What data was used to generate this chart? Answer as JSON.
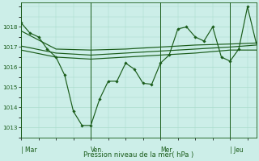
{
  "background_color": "#cceee8",
  "grid_color": "#aaddcc",
  "line_color": "#1a5c1a",
  "text_color": "#1a5c1a",
  "xlabel": "Pression niveau de la mer( hPa )",
  "ylim": [
    1012.5,
    1019.2
  ],
  "yticks": [
    1013,
    1014,
    1015,
    1016,
    1017,
    1018
  ],
  "day_labels": [
    "| Mar",
    "Ven",
    "Mer",
    "| Jeu"
  ],
  "series1_x": [
    0,
    1,
    2,
    3,
    4,
    5,
    6,
    7,
    8,
    9,
    10,
    11,
    12,
    13,
    14,
    15,
    16,
    17,
    18,
    19,
    20,
    21,
    22,
    23,
    24,
    25,
    26,
    27
  ],
  "series1_y": [
    1018.2,
    1017.7,
    1017.5,
    1016.9,
    1016.5,
    1015.6,
    1013.8,
    1013.1,
    1013.1,
    1014.4,
    1015.3,
    1015.3,
    1016.2,
    1015.9,
    1015.2,
    1015.15,
    1016.2,
    1016.6,
    1017.9,
    1018.0,
    1017.5,
    1017.3,
    1018.0,
    1016.5,
    1016.3,
    1016.9,
    1019.0,
    1017.2
  ],
  "series2_x": [
    0,
    4,
    8,
    12,
    16,
    20,
    24,
    27
  ],
  "series2_y": [
    1017.8,
    1016.9,
    1016.85,
    1016.9,
    1017.0,
    1017.1,
    1017.15,
    1017.2
  ],
  "series3_x": [
    0,
    4,
    8,
    12,
    16,
    20,
    24,
    27
  ],
  "series3_y": [
    1017.05,
    1016.7,
    1016.6,
    1016.7,
    1016.8,
    1016.9,
    1017.0,
    1017.1
  ],
  "series4_x": [
    0,
    4,
    8,
    12,
    16,
    20,
    24,
    27
  ],
  "series4_y": [
    1016.85,
    1016.5,
    1016.4,
    1016.5,
    1016.6,
    1016.7,
    1016.85,
    1016.85
  ],
  "xlim": [
    0,
    27
  ],
  "day_sep_indices": [
    0,
    8,
    16,
    24
  ],
  "figsize": [
    3.2,
    2.0
  ],
  "dpi": 100
}
